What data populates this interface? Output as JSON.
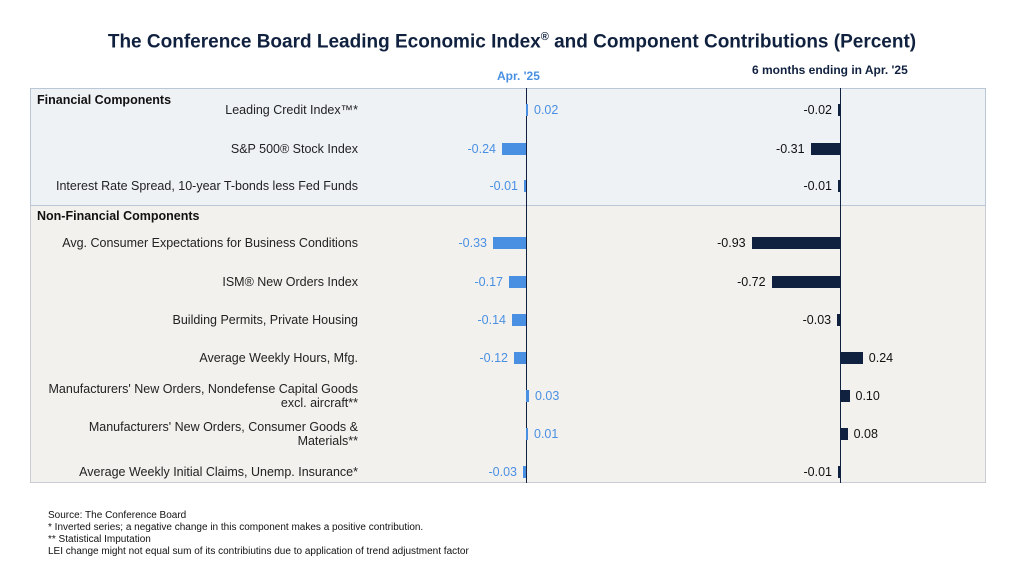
{
  "title": "The Conference Board Leading Economic Index",
  "title_mark": "®",
  "title_rest": " and Component Contributions (Percent)",
  "columns": {
    "col1": "Apr. '25",
    "col2": "6 months ending in Apr. '25"
  },
  "sections": {
    "financial": "Financial Components",
    "nonfinancial": "Non-Financial Components"
  },
  "colors": {
    "col1_bar": "#4a90e2",
    "col2_bar": "#10213f"
  },
  "footer": {
    "source": "Source: The Conference Board",
    "note1": "*  Inverted series; a negative change in this component makes a positive contribution.",
    "note2": "**  Statistical Imputation",
    "note3": "LEI change might not equal sum of its contribiutins due to application of trend adjustment factor"
  },
  "chart_data": {
    "type": "bar",
    "orientation": "horizontal",
    "categories": [
      "Leading Credit Index™*",
      "S&P 500® Stock Index",
      "Interest Rate Spread, 10-year T-bonds less Fed Funds",
      "Avg. Consumer Expectations for Business Conditions",
      "ISM® New Orders Index",
      "Building Permits, Private Housing",
      "Average Weekly Hours, Mfg.",
      "Manufacturers' New Orders, Nondefense Capital Goods excl. aircraft**",
      "Manufacturers' New Orders, Consumer Goods & Materials**",
      "Average Weekly Initial Claims, Unemp. Insurance*"
    ],
    "series": [
      {
        "name": "Apr. '25",
        "values": [
          0.02,
          -0.24,
          -0.01,
          -0.33,
          -0.17,
          -0.14,
          -0.12,
          0.03,
          0.01,
          -0.03
        ],
        "labels": [
          "0.02",
          "-0.24",
          "-0.01",
          "-0.33",
          "-0.17",
          "-0.14",
          "-0.12",
          "0.03",
          "0.01",
          "-0.03"
        ]
      },
      {
        "name": "6 months ending in Apr. '25",
        "values": [
          -0.02,
          -0.31,
          -0.01,
          -0.93,
          -0.72,
          -0.03,
          0.24,
          0.1,
          0.08,
          -0.01
        ],
        "labels": [
          "-0.02",
          "-0.31",
          "-0.01",
          "-0.93",
          "-0.72",
          "-0.03",
          "0.24",
          "0.10",
          "0.08",
          "-0.01"
        ]
      }
    ],
    "groups": [
      {
        "name": "Financial Components",
        "count": 3
      },
      {
        "name": "Non-Financial Components",
        "count": 7
      }
    ]
  }
}
